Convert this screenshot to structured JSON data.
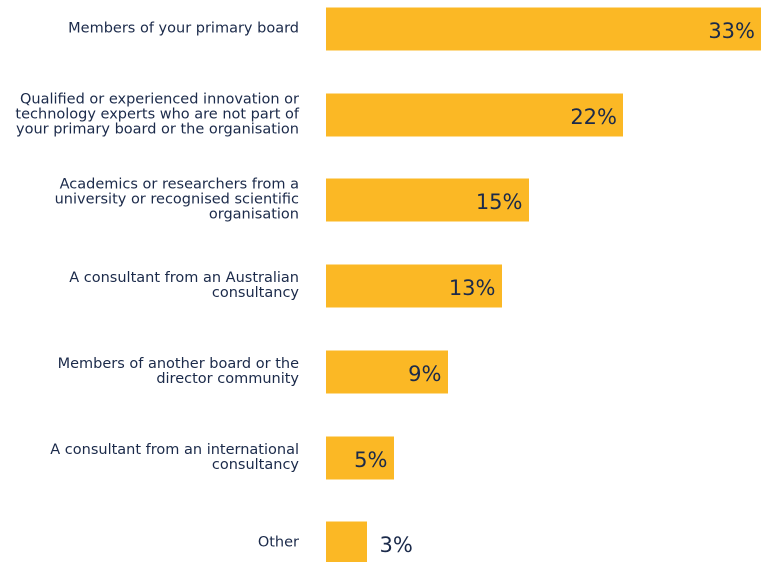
{
  "chart_data": {
    "type": "bar",
    "orientation": "horizontal",
    "categories": [
      "Members of your primary board",
      "Qualified or experienced innovation or technology experts who are not part of your primary board or the organisation",
      "Academics or researchers from a university or recognised scientific organisation",
      "A consultant from an Australian consultancy",
      "Members of another board or the director community",
      "A consultant from an international consultancy",
      "Other"
    ],
    "values": [
      33,
      22,
      15,
      13,
      9,
      5,
      3
    ],
    "value_labels": [
      "33%",
      "22%",
      "15%",
      "13%",
      "9%",
      "5%",
      "3%"
    ],
    "color": "#fbb825"
  }
}
